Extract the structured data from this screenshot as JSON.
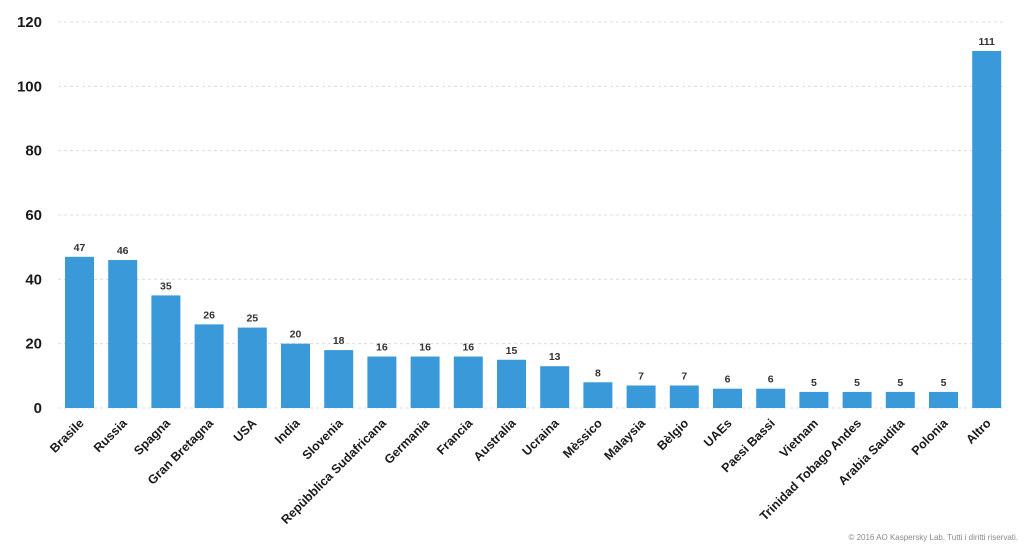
{
  "chart_data": {
    "type": "bar",
    "categories": [
      "Brasile",
      "Russia",
      "Spagna",
      "Gran Bretagna",
      "USA",
      "India",
      "Slovenia",
      "Repùbblica Sudafricana",
      "Germania",
      "Francia",
      "Australia",
      "Ucraina",
      "Mèssico",
      "Malaysia",
      "Bèlgio",
      "UAEs",
      "Paesi Bassi",
      "Vietnam",
      "Trinidad Tobago Andes",
      "Arabia Saudita",
      "Polonia",
      "Altro"
    ],
    "values": [
      47,
      46,
      35,
      26,
      25,
      20,
      18,
      16,
      16,
      16,
      15,
      13,
      8,
      7,
      7,
      6,
      6,
      5,
      5,
      5,
      5,
      111
    ],
    "ylim": [
      0,
      120
    ],
    "yticks": [
      0,
      20,
      40,
      60,
      80,
      100,
      120
    ],
    "grid": true,
    "show_data_labels": true,
    "colors": {
      "bar": "#3a9ad9",
      "text": "#1a1a1a",
      "grid": "#dcdcdc"
    }
  },
  "footer": {
    "copyright": "© 2016 AO Kaspersky Lab. Tutti i diritti riservati."
  }
}
